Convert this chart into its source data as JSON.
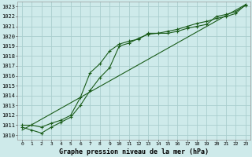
{
  "title": "Graphe pression niveau de la mer (hPa)",
  "background_color": "#ceeaea",
  "grid_color": "#aacece",
  "line_color": "#1a5c1a",
  "xlim": [
    -0.5,
    23.5
  ],
  "ylim": [
    1009.5,
    1023.5
  ],
  "xticks": [
    0,
    1,
    2,
    3,
    4,
    5,
    6,
    7,
    8,
    9,
    10,
    11,
    12,
    13,
    14,
    15,
    16,
    17,
    18,
    19,
    20,
    21,
    22,
    23
  ],
  "yticks": [
    1010,
    1011,
    1012,
    1013,
    1014,
    1015,
    1016,
    1017,
    1018,
    1019,
    1020,
    1021,
    1022,
    1023
  ],
  "series1_x": [
    0,
    1,
    2,
    3,
    4,
    5,
    6,
    7,
    8,
    9,
    10,
    11,
    12,
    13,
    14,
    15,
    16,
    17,
    18,
    19,
    20,
    21,
    22,
    23
  ],
  "series1_y": [
    1011.0,
    1011.0,
    1010.8,
    1011.2,
    1011.5,
    1012.0,
    1013.8,
    1016.3,
    1017.2,
    1018.5,
    1019.2,
    1019.5,
    1019.7,
    1020.3,
    1020.3,
    1020.3,
    1020.5,
    1020.8,
    1021.0,
    1021.2,
    1022.0,
    1022.2,
    1022.5,
    1023.1
  ],
  "series2_x": [
    0,
    1,
    2,
    3,
    4,
    5,
    6,
    7,
    8,
    9,
    10,
    11,
    12,
    13,
    14,
    15,
    16,
    17,
    18,
    19,
    20,
    21,
    22,
    23
  ],
  "series2_y": [
    1010.8,
    1010.5,
    1010.2,
    1010.8,
    1011.3,
    1011.8,
    1013.0,
    1014.5,
    1015.8,
    1016.8,
    1019.0,
    1019.3,
    1019.8,
    1020.2,
    1020.3,
    1020.5,
    1020.7,
    1021.0,
    1021.3,
    1021.5,
    1021.8,
    1022.0,
    1022.3,
    1023.2
  ],
  "series3_x": [
    0,
    23
  ],
  "series3_y": [
    1010.5,
    1023.2
  ]
}
